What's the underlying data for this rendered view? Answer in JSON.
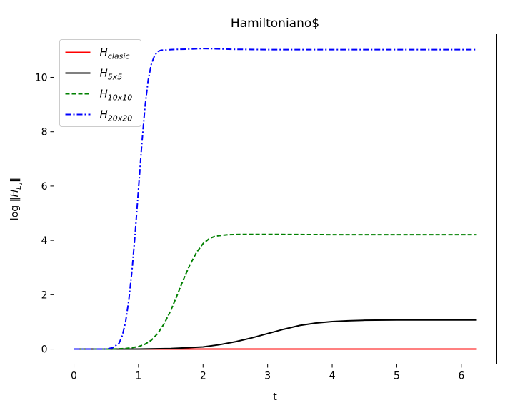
{
  "chart_data": {
    "type": "line",
    "title": "Hamiltoniano$",
    "xlabel": "t",
    "ylabel": "log ‖H_L₂‖",
    "ylabel_parts": {
      "prefix": "log ",
      "norm": "‖",
      "sym": "H",
      "sub": "L",
      "subsub": "2"
    },
    "xlim": [
      -0.31,
      6.55
    ],
    "ylim": [
      -0.55,
      11.6
    ],
    "xticks": [
      0,
      1,
      2,
      3,
      4,
      5,
      6
    ],
    "yticks": [
      0,
      2,
      4,
      6,
      8,
      10
    ],
    "grid": false,
    "legend_position": "top-left",
    "series": [
      {
        "name": "H_clasic",
        "base": "H",
        "sub": "clasic",
        "color": "#ff0000",
        "dash": "solid",
        "x": [
          0,
          6.24
        ],
        "y": [
          0,
          0
        ]
      },
      {
        "name": "H_5x5",
        "base": "H",
        "sub": "5x5",
        "color": "#000000",
        "dash": "solid",
        "x": [
          0,
          1.0,
          1.5,
          2.0,
          2.25,
          2.5,
          2.75,
          3.0,
          3.25,
          3.5,
          3.75,
          4.0,
          4.25,
          4.5,
          5.0,
          5.5,
          6.24
        ],
        "y": [
          0,
          0.0,
          0.02,
          0.08,
          0.16,
          0.27,
          0.41,
          0.57,
          0.73,
          0.87,
          0.96,
          1.01,
          1.04,
          1.06,
          1.07,
          1.07,
          1.07
        ]
      },
      {
        "name": "H_10x10",
        "base": "H",
        "sub": "10x10",
        "color": "#008000",
        "dash": "dashed",
        "x": [
          0,
          0.6,
          0.8,
          1.0,
          1.1,
          1.2,
          1.3,
          1.4,
          1.5,
          1.6,
          1.7,
          1.8,
          1.9,
          2.0,
          2.1,
          2.2,
          2.4,
          2.6,
          3.0,
          4.0,
          5.0,
          6.24
        ],
        "y": [
          0,
          0.0,
          0.02,
          0.09,
          0.18,
          0.33,
          0.58,
          0.94,
          1.42,
          1.99,
          2.58,
          3.12,
          3.56,
          3.88,
          4.07,
          4.16,
          4.21,
          4.22,
          4.22,
          4.21,
          4.21,
          4.21
        ]
      },
      {
        "name": "H_20x20",
        "base": "H",
        "sub": "20x20",
        "color": "#0000ff",
        "dash": "dashdot",
        "x": [
          0,
          0.5,
          0.6,
          0.7,
          0.75,
          0.8,
          0.85,
          0.9,
          0.95,
          1.0,
          1.05,
          1.1,
          1.15,
          1.2,
          1.25,
          1.3,
          1.35,
          1.4,
          1.5,
          1.6,
          1.8,
          2.0,
          2.2,
          2.5,
          3.0,
          4.0,
          5.0,
          6.24
        ],
        "y": [
          0,
          0.0,
          0.05,
          0.22,
          0.5,
          1.0,
          1.8,
          2.9,
          4.3,
          5.9,
          7.5,
          8.9,
          9.9,
          10.5,
          10.8,
          10.95,
          11.0,
          11.0,
          11.02,
          11.03,
          11.04,
          11.06,
          11.05,
          11.03,
          11.02,
          11.02,
          11.02,
          11.02
        ]
      }
    ]
  }
}
